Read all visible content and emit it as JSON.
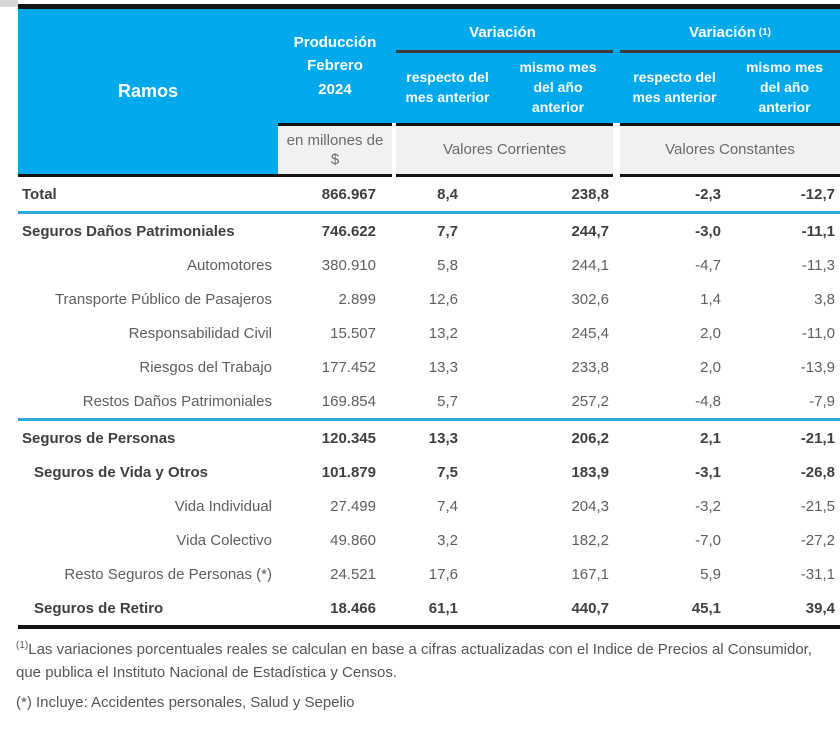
{
  "colors": {
    "header_blue": "#00A8EC",
    "separator_blue": "#29ABE2",
    "band_gray": "#F1F1F1",
    "line_black": "#141414",
    "text_regular": "#5F5F5F",
    "text_bold": "#404040",
    "header_text": "#FFFFFF"
  },
  "header": {
    "ramos": "Ramos",
    "produccion": "Producción\nFebrero\n2024",
    "variacion_corrientes": "Variación",
    "variacion_constantes": "Variación",
    "variacion_constantes_sup": "(1)",
    "sub_respecto_1": "respecto del\nmes anterior",
    "sub_mismo_1": "mismo mes\ndel año\nanterior",
    "sub_respecto_2": "respecto del\nmes anterior",
    "sub_mismo_2": "mismo mes\ndel año\nanterior",
    "unit": "en millones de\n$",
    "valores_corrientes": "Valores Corrientes",
    "valores_constantes": "Valores Constantes"
  },
  "rows": [
    {
      "label": "Total",
      "style": "bold-left",
      "prod": "866.967",
      "vc_mes": "8,4",
      "vc_anio": "238,8",
      "vk_mes": "-2,3",
      "vk_anio": "-12,7",
      "sep_after": "blue"
    },
    {
      "label": "Seguros Daños Patrimoniales",
      "style": "bold-left",
      "prod": "746.622",
      "vc_mes": "7,7",
      "vc_anio": "244,7",
      "vk_mes": "-3,0",
      "vk_anio": "-11,1"
    },
    {
      "label": "Automotores",
      "style": "sub-right",
      "prod": "380.910",
      "vc_mes": "5,8",
      "vc_anio": "244,1",
      "vk_mes": "-4,7",
      "vk_anio": "-11,3"
    },
    {
      "label": "Transporte Público de Pasajeros",
      "style": "sub-right",
      "prod": "2.899",
      "vc_mes": "12,6",
      "vc_anio": "302,6",
      "vk_mes": "1,4",
      "vk_anio": "3,8"
    },
    {
      "label": "Responsabilidad Civil",
      "style": "sub-right",
      "prod": "15.507",
      "vc_mes": "13,2",
      "vc_anio": "245,4",
      "vk_mes": "2,0",
      "vk_anio": "-11,0"
    },
    {
      "label": "Riesgos del Trabajo",
      "style": "sub-right",
      "prod": "177.452",
      "vc_mes": "13,3",
      "vc_anio": "233,8",
      "vk_mes": "2,0",
      "vk_anio": "-13,9"
    },
    {
      "label": "Restos Daños Patrimoniales",
      "style": "sub-right",
      "prod": "169.854",
      "vc_mes": "5,7",
      "vc_anio": "257,2",
      "vk_mes": "-4,8",
      "vk_anio": "-7,9",
      "sep_after": "blue"
    },
    {
      "label": "Seguros de Personas",
      "style": "bold-left",
      "prod": "120.345",
      "vc_mes": "13,3",
      "vc_anio": "206,2",
      "vk_mes": "2,1",
      "vk_anio": "-21,1"
    },
    {
      "label": "Seguros de Vida y Otros",
      "style": "bold-indent",
      "prod": "101.879",
      "vc_mes": "7,5",
      "vc_anio": "183,9",
      "vk_mes": "-3,1",
      "vk_anio": "-26,8"
    },
    {
      "label": "Vida Individual",
      "style": "sub-right",
      "prod": "27.499",
      "vc_mes": "7,4",
      "vc_anio": "204,3",
      "vk_mes": "-3,2",
      "vk_anio": "-21,5"
    },
    {
      "label": "Vida Colectivo",
      "style": "sub-right",
      "prod": "49.860",
      "vc_mes": "3,2",
      "vc_anio": "182,2",
      "vk_mes": "-7,0",
      "vk_anio": "-27,2"
    },
    {
      "label": "Resto Seguros de Personas (*)",
      "style": "sub-right",
      "prod": "24.521",
      "vc_mes": "17,6",
      "vc_anio": "167,1",
      "vk_mes": "5,9",
      "vk_anio": "-31,1"
    },
    {
      "label": "Seguros de Retiro",
      "style": "bold-indent",
      "prod": "18.466",
      "vc_mes": "61,1",
      "vc_anio": "440,7",
      "vk_mes": "45,1",
      "vk_anio": "39,4"
    }
  ],
  "footnotes": {
    "note1_sup": "(1)",
    "note1_text": "Las variaciones porcentuales reales se calculan en base a cifras actualizadas con  el Indice de Precios al Consumidor, que publica el Instituto Nacional de Estadística y  Censos.",
    "note2_text": "(*) Incluye: Accidentes personales, Salud y Sepelio"
  }
}
